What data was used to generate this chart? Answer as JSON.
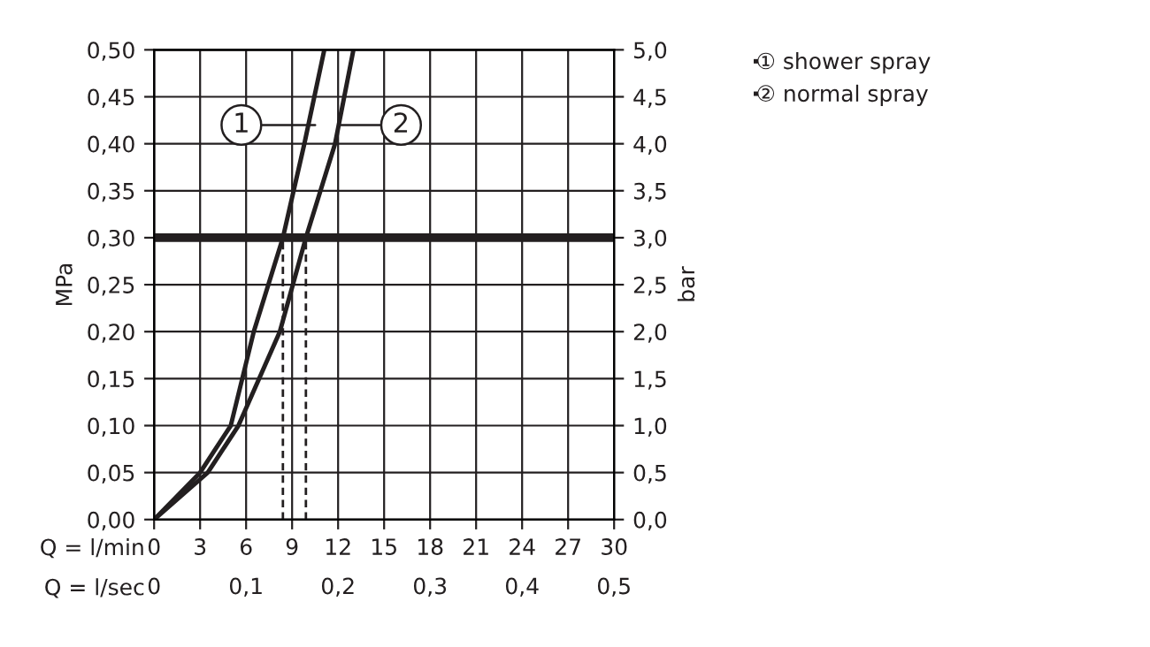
{
  "chart_data": {
    "type": "line",
    "xlabel": "Q = l/min",
    "x2label": "Q = l/sec",
    "ylabel": "MPa",
    "y2label": "bar",
    "xlim": [
      0,
      30
    ],
    "xticks": [
      0,
      3,
      6,
      9,
      12,
      15,
      18,
      21,
      24,
      27,
      30
    ],
    "x2lim": [
      0,
      0.5
    ],
    "x2ticks": [
      {
        "value": 0,
        "label": "0"
      },
      {
        "value": 0.1,
        "label": "0,1"
      },
      {
        "value": 0.2,
        "label": "0,2"
      },
      {
        "value": 0.3,
        "label": "0,3"
      },
      {
        "value": 0.4,
        "label": "0,4"
      },
      {
        "value": 0.5,
        "label": "0,5"
      }
    ],
    "ylim": [
      0,
      0.5
    ],
    "yticks": [
      {
        "value": 0,
        "label": "0,00"
      },
      {
        "value": 0.05,
        "label": "0,05"
      },
      {
        "value": 0.1,
        "label": "0,10"
      },
      {
        "value": 0.15,
        "label": "0,15"
      },
      {
        "value": 0.2,
        "label": "0,20"
      },
      {
        "value": 0.25,
        "label": "0,25"
      },
      {
        "value": 0.3,
        "label": "0,30"
      },
      {
        "value": 0.35,
        "label": "0,35"
      },
      {
        "value": 0.4,
        "label": "0,40"
      },
      {
        "value": 0.45,
        "label": "0,45"
      },
      {
        "value": 0.5,
        "label": "0,50"
      }
    ],
    "y2lim": [
      0,
      5
    ],
    "y2ticks": [
      {
        "value": 0,
        "label": "0,0"
      },
      {
        "value": 0.5,
        "label": "0,5"
      },
      {
        "value": 1,
        "label": "1,0"
      },
      {
        "value": 1.5,
        "label": "1,5"
      },
      {
        "value": 2,
        "label": "2,0"
      },
      {
        "value": 2.5,
        "label": "2,5"
      },
      {
        "value": 3,
        "label": "3,0"
      },
      {
        "value": 3.5,
        "label": "3,5"
      },
      {
        "value": 4,
        "label": "4,0"
      },
      {
        "value": 4.5,
        "label": "4,5"
      },
      {
        "value": 5,
        "label": "5,0"
      }
    ],
    "grid": true,
    "legend": "top right",
    "series": [
      {
        "name": "① shower spray",
        "color": "#231f20",
        "x": [
          0,
          3,
          5,
          6.5,
          8.4,
          9.8,
          11.1
        ],
        "values": [
          0,
          0.05,
          0.1,
          0.2,
          0.3,
          0.4,
          0.5
        ]
      },
      {
        "name": "② normal spray",
        "color": "#231f20",
        "x": [
          0,
          3.5,
          5.5,
          8.2,
          9.9,
          11.8,
          13.0
        ],
        "values": [
          0,
          0.05,
          0.1,
          0.2,
          0.3,
          0.4,
          0.5
        ]
      },
      {
        "type": "line",
        "line_style": "dashed",
        "color": "#231f20",
        "x": [
          8.4,
          8.4
        ],
        "values": [
          0,
          0.3
        ]
      },
      {
        "type": "line",
        "line_style": "dashed",
        "color": "#231f20",
        "x": [
          9.9,
          9.9
        ],
        "values": [
          0,
          0.3
        ]
      }
    ],
    "ref_lines": [
      {
        "axis": "y",
        "value": 0.3,
        "color": "#231f20"
      }
    ],
    "annotations": [
      {
        "text": "1",
        "x": 10.5,
        "y": 0.42
      },
      {
        "text": "2",
        "x": 12.1,
        "y": 0.42
      }
    ]
  }
}
